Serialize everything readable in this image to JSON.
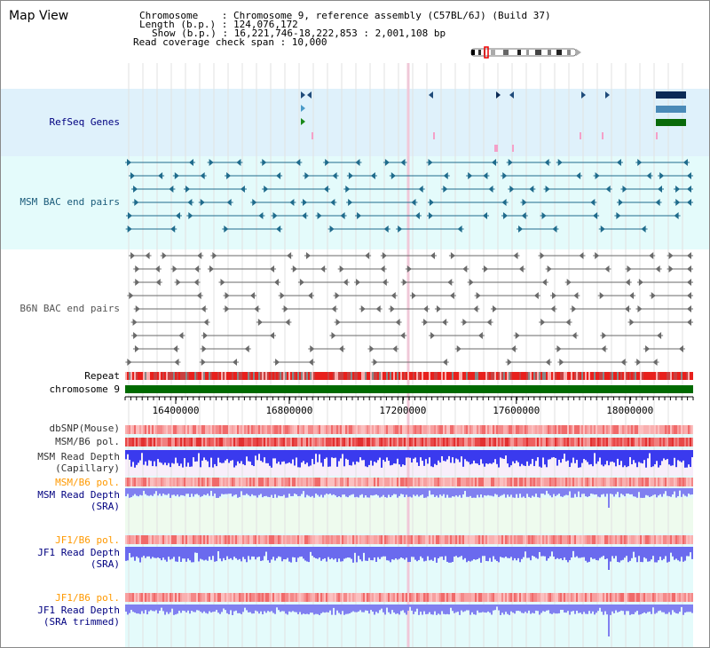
{
  "view_title": "Map View",
  "header": {
    "chromosome_line": "Chromosome    : Chromosome 9, reference assembly (C57BL/6J) (Build 37)",
    "length_line": "Length (b.p.) : 124,076,172",
    "show_line": "Show (b.p.) : 16,221,746-18,222,853 : 2,001,108 bp",
    "coverage_line": "Read coverage check span : 10,000"
  },
  "track_labels": {
    "refseq": "RefSeq Genes",
    "msm_bac": "MSM BAC end pairs",
    "b6n_bac": "B6N BAC end pairs",
    "repeat": "Repeat",
    "chromosome": "chromosome 9",
    "dbsnp": "dbSNP(Mouse)",
    "msm_b6_pol_1": "MSM/B6 pol.",
    "msm_depth_cap_1": "MSM Read Depth",
    "msm_depth_cap_2": "(Capillary)",
    "msm_b6_pol_2": "MSM/B6 pol.",
    "msm_depth_sra_1": "MSM Read Depth",
    "msm_depth_sra_2": "(SRA)",
    "jf1_b6_pol_1": "JF1/B6 pol.",
    "jf1_depth_sra_1": "JF1 Read Depth",
    "jf1_depth_sra_2": "(SRA)",
    "jf1_b6_pol_2": "JF1/B6 pol.",
    "jf1_depth_trim_1": "JF1 Read Depth",
    "jf1_depth_trim_2": "(SRA trimmed)"
  },
  "axis": {
    "ticks": [
      "16400000",
      "16800000",
      "17200000",
      "17600000",
      "18000000"
    ],
    "tick_values": [
      16400000,
      16800000,
      17200000,
      17600000,
      18000000
    ],
    "range": [
      16221746,
      18222853
    ]
  },
  "colors": {
    "refseq_bg": "#dff1fb",
    "msm_bg": "#e4fbfb",
    "b6n_bg": "#ffffff",
    "msm_feature": "#1f6b8c",
    "b6n_feature": "#6a6a6a",
    "chromosome_bar": "#006a00",
    "repeat_red": "#e8201c",
    "polymorph": "#f06060",
    "depth_blue": "#3a3aee",
    "depth_light": "#8080f0",
    "label_navy": "#000080",
    "label_orange": "#ff9900",
    "label_teal": "#1a5b7a"
  }
}
